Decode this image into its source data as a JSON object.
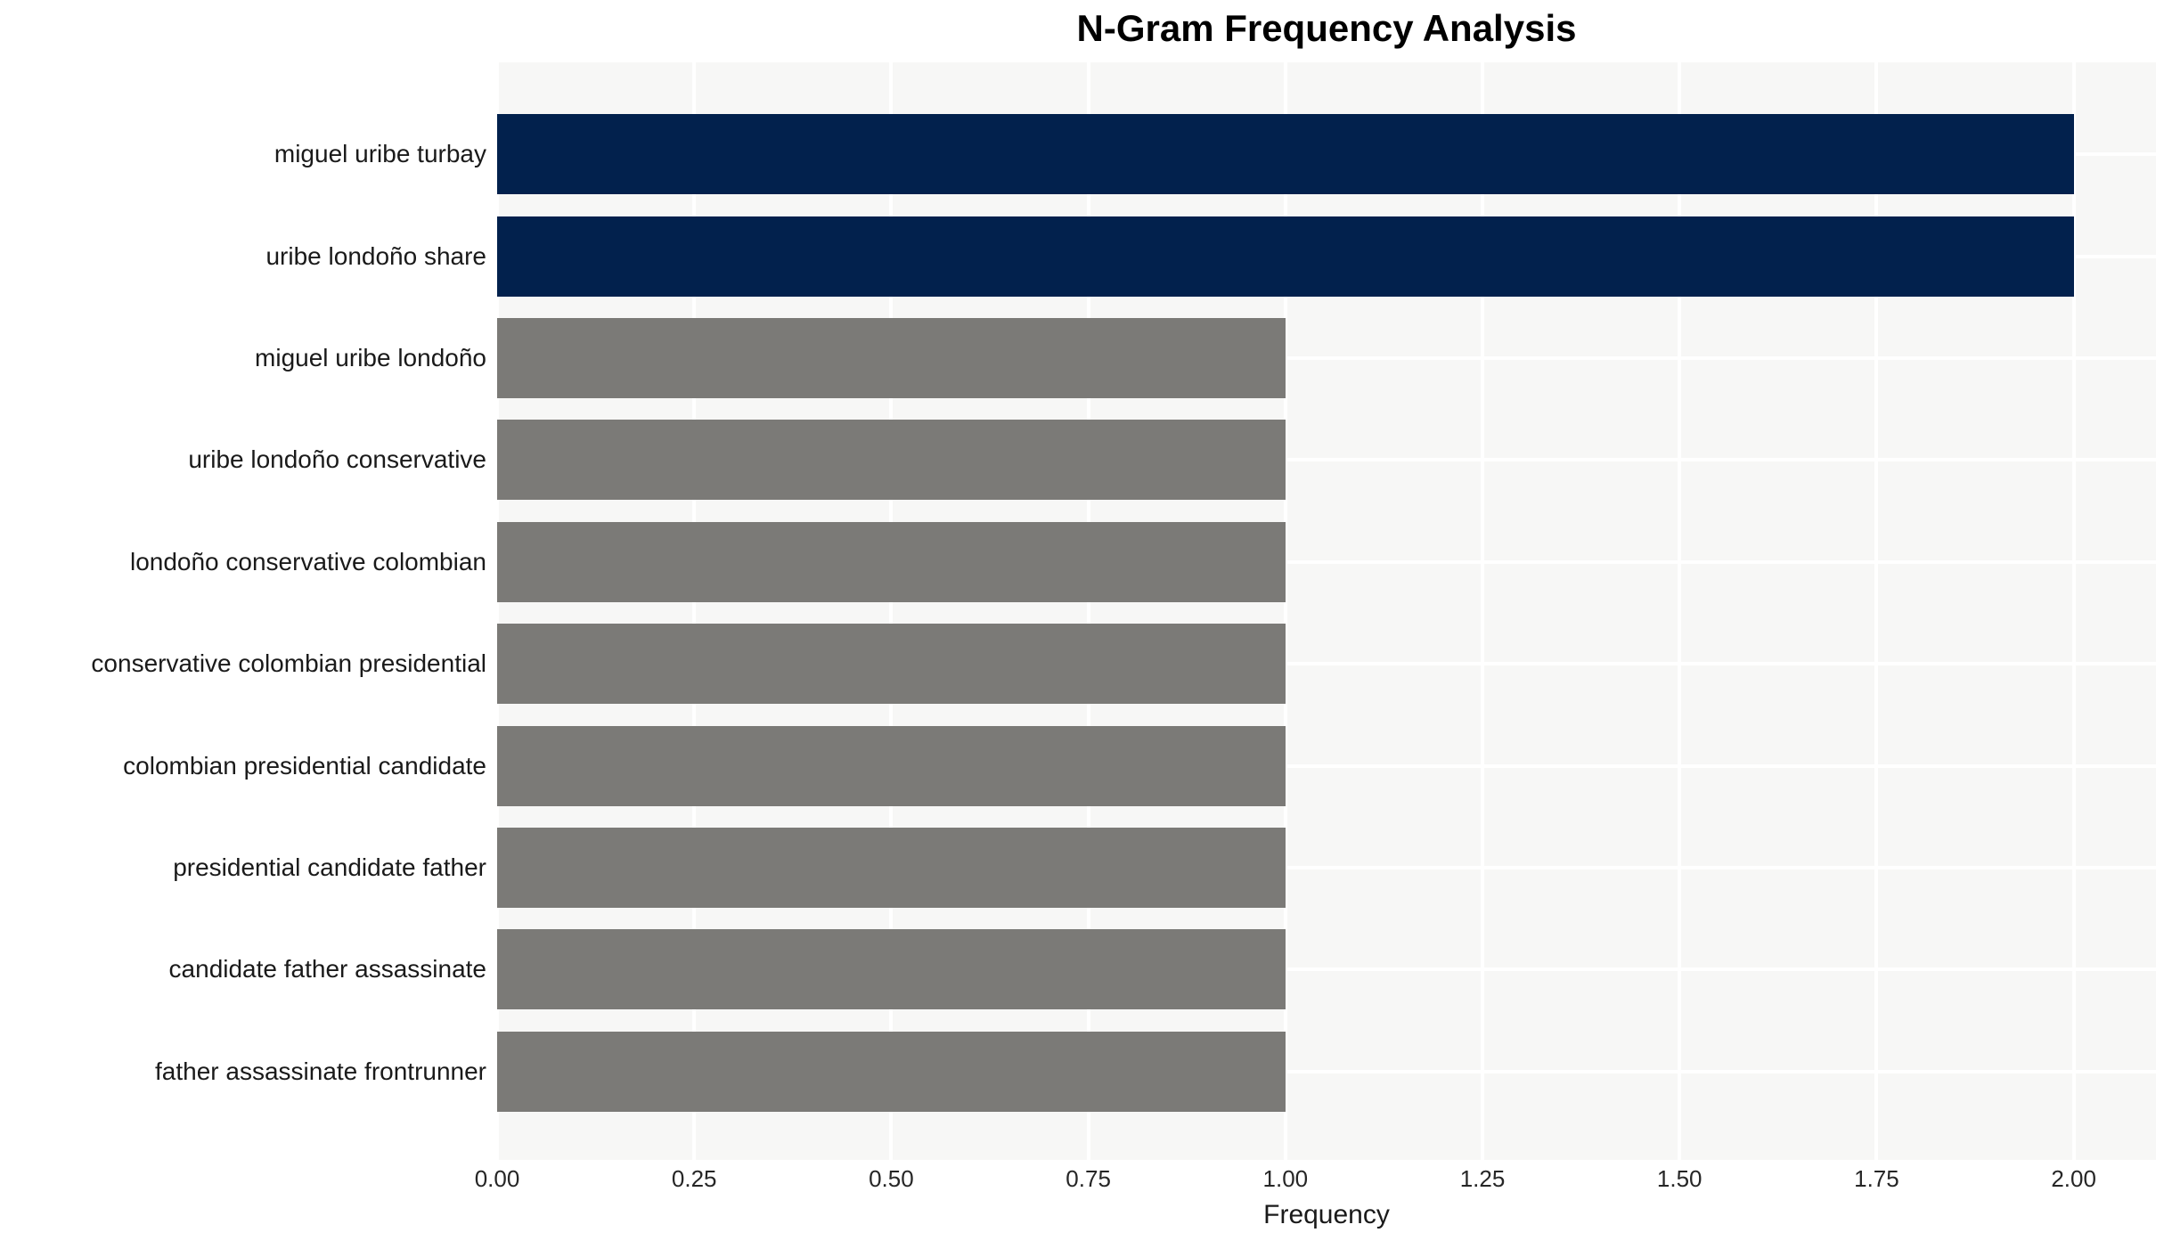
{
  "title": "N-Gram Frequency Analysis",
  "chart_data": {
    "type": "bar",
    "orientation": "horizontal",
    "title": "N-Gram Frequency Analysis",
    "xlabel": "Frequency",
    "ylabel": "",
    "categories": [
      "miguel uribe turbay",
      "uribe londoño share",
      "miguel uribe londoño",
      "uribe londoño conservative",
      "londoño conservative colombian",
      "conservative colombian presidential",
      "colombian presidential candidate",
      "presidential candidate father",
      "candidate father assassinate",
      "father assassinate frontrunner"
    ],
    "values": [
      2,
      2,
      1,
      1,
      1,
      1,
      1,
      1,
      1,
      1
    ],
    "bar_colors": [
      "highlight",
      "highlight",
      "default",
      "default",
      "default",
      "default",
      "default",
      "default",
      "default",
      "default"
    ],
    "xlim": [
      0,
      2.1044
    ],
    "xticks": [
      {
        "value": 0.0,
        "label": "0.00"
      },
      {
        "value": 0.25,
        "label": "0.25"
      },
      {
        "value": 0.5,
        "label": "0.50"
      },
      {
        "value": 0.75,
        "label": "0.75"
      },
      {
        "value": 1.0,
        "label": "1.00"
      },
      {
        "value": 1.25,
        "label": "1.25"
      },
      {
        "value": 1.5,
        "label": "1.50"
      },
      {
        "value": 1.75,
        "label": "1.75"
      },
      {
        "value": 2.0,
        "label": "2.00"
      }
    ],
    "grid": true,
    "legend": false
  },
  "style": {
    "figure_bg": "#ffffff",
    "plot_bg": "#f7f7f6",
    "grid_color": "#ffffff",
    "bar_highlight_color": "#02214d",
    "bar_default_color": "#7b7a77",
    "title_color": "#000000",
    "tick_color": "#262626",
    "label_color": "#1a1a1a"
  }
}
